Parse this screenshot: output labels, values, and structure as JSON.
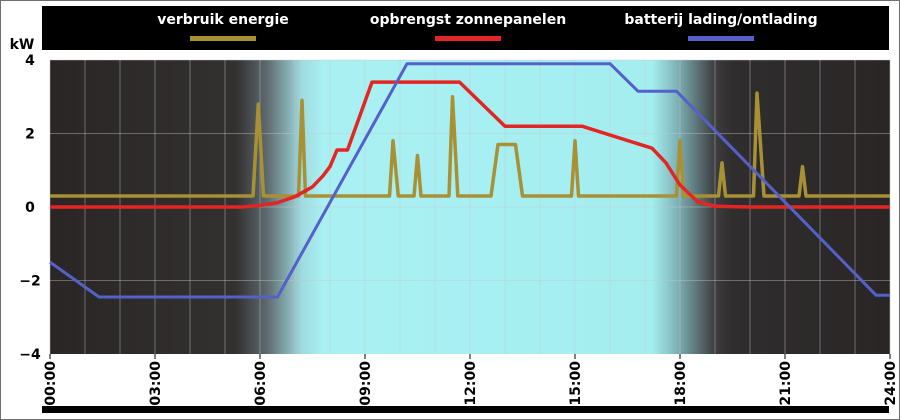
{
  "chart_data": {
    "type": "line",
    "y_unit": "kW",
    "ylim": [
      -4,
      4
    ],
    "xlim": [
      0,
      24
    ],
    "y_ticks": [
      "4",
      "2",
      "0",
      "−2",
      "−4"
    ],
    "y_tick_values": [
      4,
      2,
      0,
      -2,
      -4
    ],
    "x_ticks": [
      "00:00",
      "03:00",
      "06:00",
      "09:00",
      "12:00",
      "15:00",
      "18:00",
      "21:00",
      "24:00"
    ],
    "x_tick_values": [
      0,
      3,
      6,
      9,
      12,
      15,
      18,
      21,
      24
    ],
    "daylight_hours": {
      "dawn_start": 5.3,
      "day_start": 7.8,
      "day_end": 17.2,
      "dusk_end": 19.5
    },
    "grid": true,
    "legend_position": "top",
    "series": [
      {
        "name": "verbruik energie",
        "color": "#a89134",
        "x": [
          0,
          5.8,
          5.95,
          6.1,
          6.2,
          7.1,
          7.2,
          7.3,
          7.4,
          9.7,
          9.8,
          9.95,
          10.4,
          10.5,
          10.6,
          11.4,
          11.5,
          11.65,
          12.6,
          12.8,
          13.3,
          13.5,
          14.9,
          15.0,
          15.1,
          17.9,
          18.0,
          18.1,
          19.1,
          19.2,
          19.3,
          20.1,
          20.2,
          20.4,
          21.4,
          21.5,
          21.6,
          24
        ],
        "y": [
          0.3,
          0.3,
          2.8,
          0.3,
          0.3,
          0.3,
          2.9,
          0.3,
          0.3,
          0.3,
          1.8,
          0.3,
          0.3,
          1.4,
          0.3,
          0.3,
          3.0,
          0.3,
          0.3,
          1.7,
          1.7,
          0.3,
          0.3,
          1.8,
          0.3,
          0.3,
          1.8,
          0.3,
          0.3,
          1.2,
          0.3,
          0.3,
          3.1,
          0.3,
          0.3,
          1.1,
          0.3,
          0.3
        ]
      },
      {
        "name": "opbrengst zonnepanelen",
        "color": "#e32624",
        "x": [
          0,
          5.5,
          6.0,
          6.5,
          7.0,
          7.5,
          7.8,
          8.0,
          8.2,
          8.5,
          9.2,
          11.7,
          13.0,
          15.2,
          17.2,
          17.6,
          18.0,
          18.5,
          19.0,
          20.0,
          24
        ],
        "y": [
          0,
          0,
          0.04,
          0.12,
          0.28,
          0.55,
          0.85,
          1.1,
          1.55,
          1.55,
          3.4,
          3.4,
          2.2,
          2.2,
          1.6,
          1.2,
          0.6,
          0.15,
          0.02,
          0,
          0
        ]
      },
      {
        "name": "batterij lading/ontlading",
        "color": "#5560c8",
        "x": [
          0,
          1.4,
          6.5,
          10.2,
          16.0,
          16.8,
          17.9,
          23.6,
          24
        ],
        "y": [
          -1.5,
          -2.45,
          -2.45,
          3.9,
          3.9,
          3.15,
          3.15,
          -2.4,
          -2.4
        ]
      }
    ]
  }
}
